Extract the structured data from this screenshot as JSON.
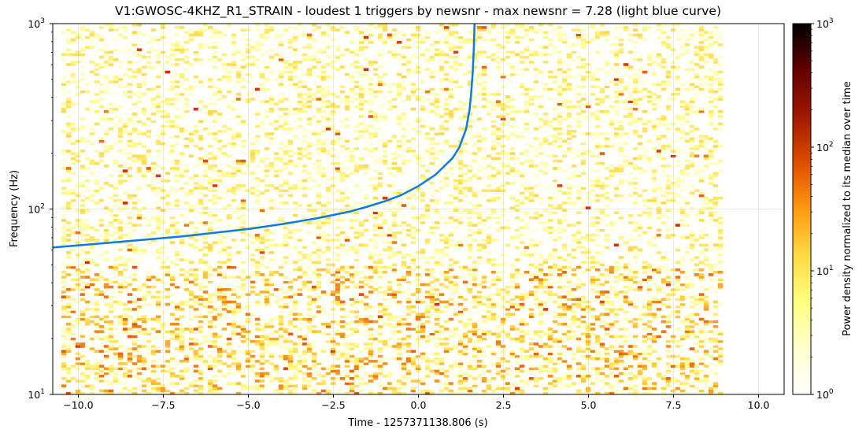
{
  "chart_data": {
    "type": "heatmap",
    "title": "V1:GWOSC-4KHZ_R1_STRAIN - loudest 1 triggers by newsnr - max newsnr = 7.28 (light blue curve)",
    "xlabel": "Time - 1257371138.806 (s)",
    "ylabel": "Frequency (Hz)",
    "colorbar_label": "Power density normalized to its median over time",
    "xlim": [
      -10.75,
      10.75
    ],
    "ylim": [
      10,
      1000
    ],
    "yscale": "log",
    "x_ticks": [
      -10.0,
      -7.5,
      -5.0,
      -2.5,
      0.0,
      2.5,
      5.0,
      7.5,
      10.0
    ],
    "x_tick_labels": [
      "−10.0",
      "−7.5",
      "−5.0",
      "−2.5",
      "0.0",
      "2.5",
      "5.0",
      "7.5",
      "10.0"
    ],
    "y_tick_labels": [
      {
        "value": 10,
        "base": "10",
        "exp": "1"
      },
      {
        "value": 100,
        "base": "10",
        "exp": "2"
      },
      {
        "value": 1000,
        "base": "10",
        "exp": "3"
      }
    ],
    "colorbar": {
      "scale": "log",
      "range": [
        1,
        1000
      ],
      "tick_labels": [
        {
          "value": 1,
          "base": "10",
          "exp": "0"
        },
        {
          "value": 10,
          "base": "10",
          "exp": "1"
        },
        {
          "value": 100,
          "base": "10",
          "exp": "2"
        },
        {
          "value": 1000,
          "base": "10",
          "exp": "3"
        }
      ],
      "colormap": "afmhot_r"
    },
    "spectrogram_time_range": [
      -10.5,
      8.9
    ],
    "grid": true,
    "series": [
      {
        "color": "#0a7ae6",
        "x": [
          -10.75,
          -9,
          -7,
          -5,
          -4,
          -3,
          -2,
          -1.5,
          -1,
          -0.5,
          0,
          0.5,
          1,
          1.2,
          1.4,
          1.5,
          1.55,
          1.6,
          1.63,
          1.65
        ],
        "y": [
          62,
          66,
          71,
          78,
          83,
          89,
          97,
          103,
          110,
          119,
          133,
          153,
          188,
          215,
          270,
          340,
          420,
          560,
          750,
          1000
        ]
      }
    ]
  }
}
